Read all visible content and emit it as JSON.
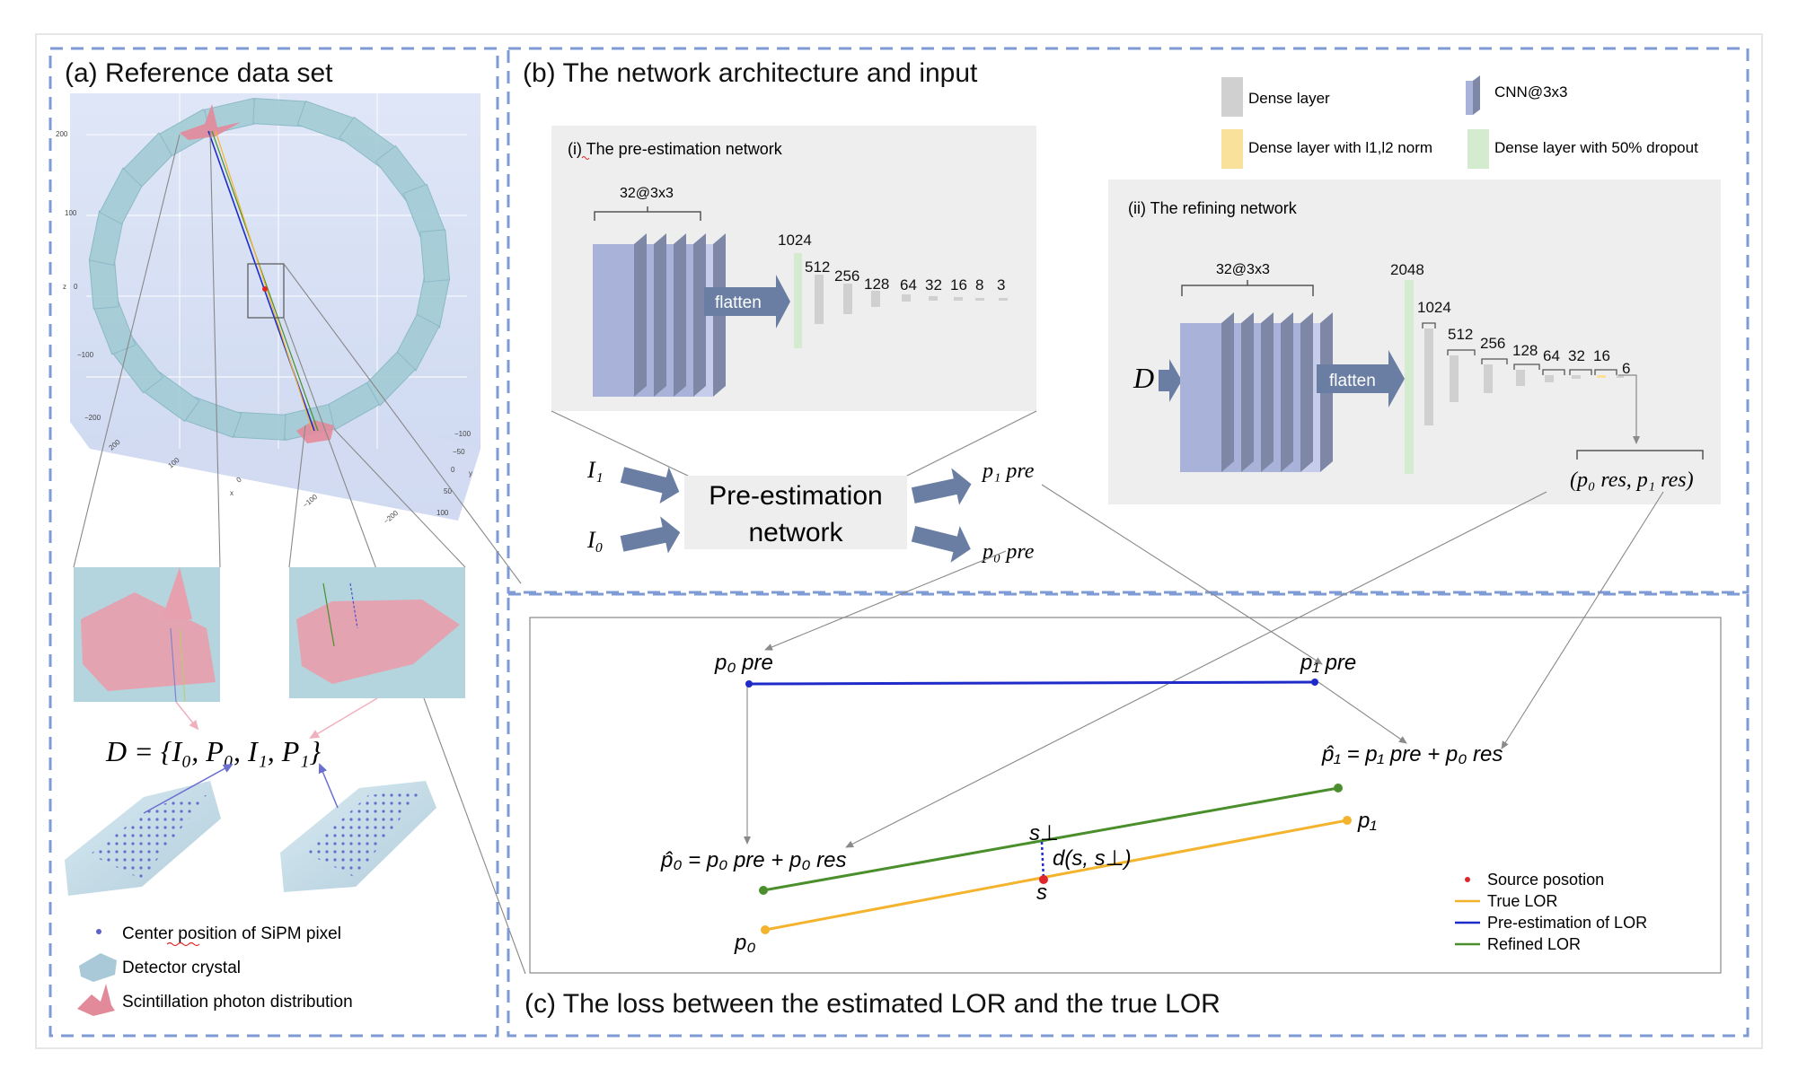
{
  "panel_a": {
    "title": "(a) Reference data set",
    "eq_D": "D = {I₀, P₀, I₁, P₁}",
    "axis_ticks": {
      "z": [
        "200",
        "100",
        "0",
        "−100",
        "−200"
      ],
      "z_label": "z",
      "x": [
        "200",
        "100",
        "0"
      ],
      "x_label": "x",
      "x2": [
        "−100",
        "−200"
      ],
      "y": [
        "−100",
        "−50",
        "0",
        "50",
        "100"
      ],
      "y_label": "y"
    },
    "legend": [
      {
        "icon": "sipm-dot-icon",
        "label": "Center position of SiPM pixel"
      },
      {
        "icon": "detector-crystal-icon",
        "label": "Detector crystal"
      },
      {
        "icon": "scintillation-distribution-icon",
        "label": "Scintillation photon distribution"
      }
    ]
  },
  "panel_b": {
    "title": "(b) The network architecture and input",
    "legend": [
      {
        "swatch": "#d0d0d0",
        "label": "Dense layer"
      },
      {
        "swatch": "#fae19b",
        "label": "Dense layer with l1,l2 norm"
      },
      {
        "swatch": "#c2ccf0",
        "label": "CNN@3x3"
      },
      {
        "swatch": "#d4ebcf",
        "label": "Dense layer with 50% dropout"
      }
    ],
    "pre_net": {
      "title": "(i) The pre-estimation network",
      "cnn_label": "32@3x3",
      "flatten": "flatten",
      "sizes": [
        "1024",
        "512",
        "256",
        "128",
        "64",
        "32",
        "16",
        "8",
        "3"
      ]
    },
    "refine_net": {
      "title": "(ii) The refining network",
      "cnn_label": "32@3x3",
      "flatten": "flatten",
      "input": "D",
      "sizes": [
        "2048",
        "1024",
        "512",
        "256",
        "128",
        "64",
        "32",
        "16",
        "6"
      ],
      "output": "(p₀ res, p₁ res)"
    },
    "pre_box": [
      "Pre-estimation",
      "network"
    ],
    "inputs": [
      "I₁",
      "I₀"
    ],
    "outputs": [
      "p₁ pre",
      "p₀ pre"
    ]
  },
  "panel_c": {
    "title": "(c) The loss between the estimated LOR and the  true LOR",
    "labels": {
      "p0pre": "p₀ pre",
      "p1pre": "p₁ pre",
      "p1hat": "p̂₁ = p₁ pre + p₀ res",
      "p0hat": "p̂₀ = p₀ pre + p₀ res",
      "sperp": "s⊥",
      "dist": "d(s, s⊥)",
      "s": "s",
      "p1": "p₁",
      "p0": "p₀"
    },
    "legend": [
      {
        "color": "#e0262a",
        "label": "Source posotion"
      },
      {
        "color": "#f4b32c",
        "label": "True LOR"
      },
      {
        "color": "#1e2bc8",
        "label": "Pre-estimation of LOR"
      },
      {
        "color": "#4a8f2c",
        "label": "Refined LOR"
      }
    ]
  }
}
